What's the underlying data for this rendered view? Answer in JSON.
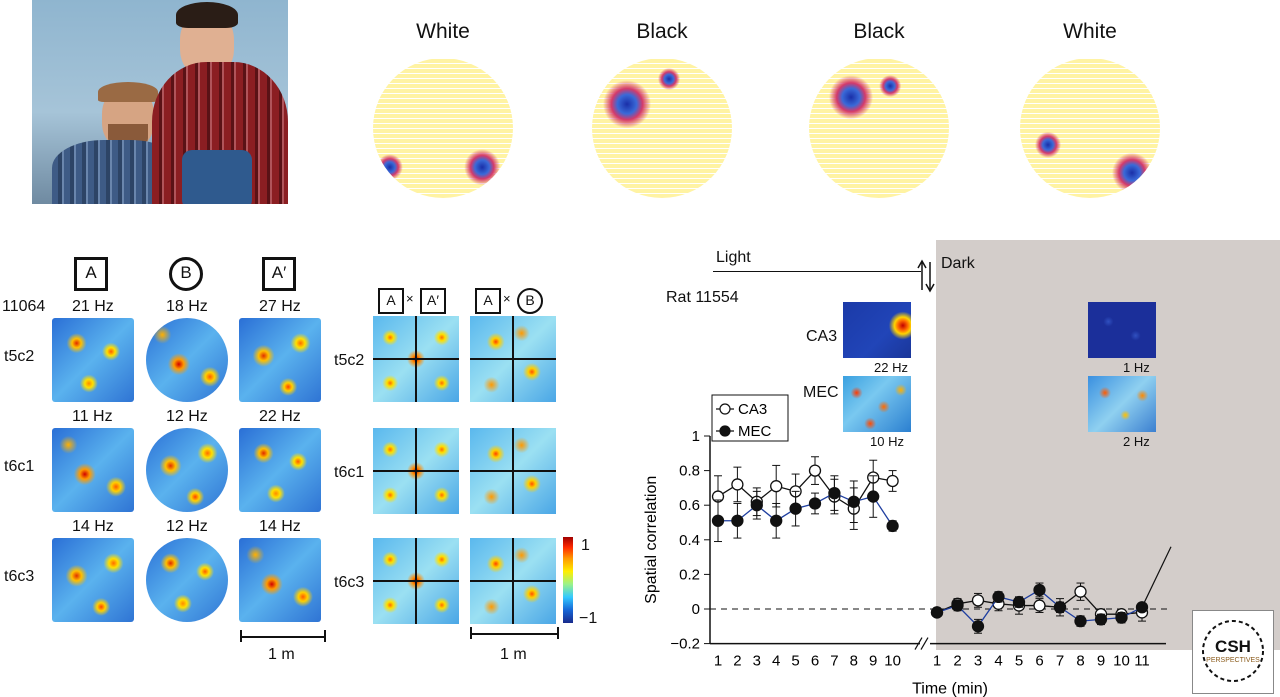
{
  "photo": {
    "desc_icon": "portrait-photo-icon"
  },
  "top_maps": [
    {
      "label": "White"
    },
    {
      "label": "Black"
    },
    {
      "label": "Black"
    },
    {
      "label": "White"
    }
  ],
  "left_panel": {
    "animal": "11064",
    "env_labels": [
      "A",
      "B",
      "A′"
    ],
    "cells": [
      {
        "id": "t5c2",
        "rates": [
          "21 Hz",
          "18 Hz",
          "27 Hz"
        ]
      },
      {
        "id": "t6c1",
        "rates": [
          "11 Hz",
          "12 Hz",
          "22 Hz"
        ]
      },
      {
        "id": "t6c3",
        "rates": [
          "14 Hz",
          "12 Hz",
          "14 Hz"
        ]
      }
    ],
    "scale_bar": "1 m"
  },
  "xcorr_panel": {
    "headers": [
      {
        "left": "A",
        "times": "×",
        "right": "A′"
      },
      {
        "left": "A",
        "times": "×",
        "right": "B"
      }
    ],
    "cells": [
      "t5c2",
      "t6c1",
      "t6c3"
    ],
    "colorbar": {
      "max": "1",
      "min": "−1"
    },
    "scale_bar": "1 m"
  },
  "chart_panel": {
    "rat": "Rat 11554",
    "light_label": "Light",
    "dark_label": "Dark",
    "insets": {
      "light": [
        {
          "name": "CA3",
          "rate": "22 Hz"
        },
        {
          "name": "MEC",
          "rate": "10 Hz"
        }
      ],
      "dark": [
        {
          "rate": "1 Hz"
        },
        {
          "rate": "2 Hz"
        }
      ]
    }
  },
  "chart_data": {
    "type": "line",
    "title": "",
    "xlabel": "Time (min)",
    "ylabel": "Spatial correlation",
    "ylim": [
      -0.2,
      1.0
    ],
    "yticks": [
      "−0.2",
      "0",
      "0.2",
      "0.4",
      "0.6",
      "0.8",
      "1"
    ],
    "x_light": [
      "1",
      "2",
      "3",
      "4",
      "5",
      "6",
      "7",
      "8",
      "9",
      "10"
    ],
    "x_dark": [
      "1",
      "2",
      "3",
      "4",
      "5",
      "6",
      "7",
      "8",
      "9",
      "10",
      "11"
    ],
    "legend": {
      "position": "top-left",
      "entries": [
        "CA3",
        "MEC"
      ]
    },
    "series": [
      {
        "name": "CA3",
        "light": [
          0.65,
          0.72,
          0.62,
          0.71,
          0.68,
          0.8,
          0.65,
          0.58,
          0.76,
          0.74
        ],
        "light_err": [
          0.12,
          0.1,
          0.08,
          0.12,
          0.1,
          0.08,
          0.1,
          0.12,
          0.1,
          0.06
        ],
        "dark": [
          -0.02,
          0.03,
          0.05,
          0.03,
          0.02,
          0.02,
          0.01,
          0.1,
          -0.03,
          -0.03,
          -0.02
        ],
        "dark_err": [
          0.02,
          0.03,
          0.04,
          0.04,
          0.05,
          0.04,
          0.05,
          0.05,
          0.03,
          0.02,
          0.05
        ]
      },
      {
        "name": "MEC",
        "light": [
          0.51,
          0.51,
          0.6,
          0.51,
          0.58,
          0.61,
          0.67,
          0.62,
          0.65,
          0.48
        ],
        "light_err": [
          0.12,
          0.1,
          0.08,
          0.1,
          0.1,
          0.06,
          0.1,
          0.12,
          0.12,
          0.03
        ],
        "dark": [
          -0.02,
          0.02,
          -0.1,
          0.07,
          0.04,
          0.11,
          0.01,
          -0.07,
          -0.06,
          -0.05,
          0.01
        ],
        "dark_err": [
          0.02,
          0.03,
          0.04,
          0.03,
          0.03,
          0.04,
          0.03,
          0.03,
          0.03,
          0.03,
          0.02
        ]
      }
    ],
    "reference_line": 0
  },
  "logo": {
    "line1": "CSH",
    "line2": "PERSPECTIVES"
  }
}
